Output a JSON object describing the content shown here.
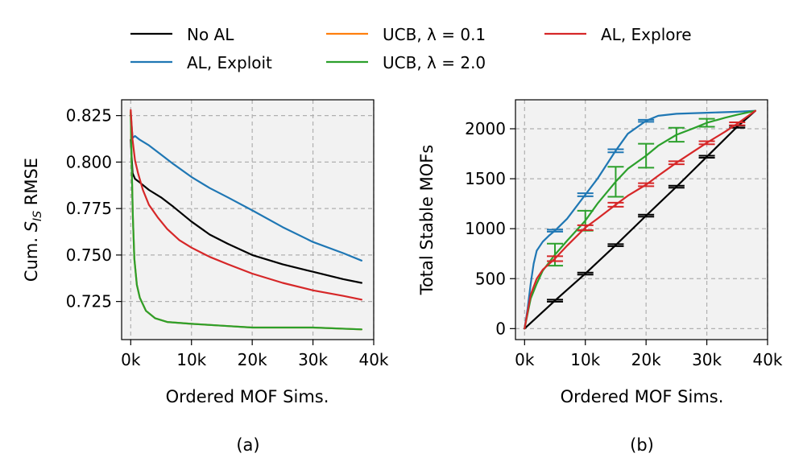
{
  "legend": [
    {
      "label": "No AL",
      "color": "#000000"
    },
    {
      "label": "AL, Exploit",
      "color": "#1f77b4"
    },
    {
      "label": "UCB, λ = 0.1",
      "color": "#ff7f0e"
    },
    {
      "label": "UCB, λ = 2.0",
      "color": "#2ca02c"
    },
    {
      "label": "AL, Explore",
      "color": "#d62728"
    }
  ],
  "chart_data": [
    {
      "type": "line",
      "panel_label": "(a)",
      "xlabel": "Ordered MOF Sims.",
      "ylabel_prefix": "Cum. ",
      "ylabel_symbol": "S",
      "ylabel_sub": "IS",
      "ylabel_suffix": " RMSE",
      "xlim": [
        -1500,
        40000
      ],
      "ylim": [
        0.7045,
        0.8335
      ],
      "xticks": [
        0,
        10000,
        20000,
        30000,
        40000
      ],
      "xtick_labels": [
        "0k",
        "10k",
        "20k",
        "30k",
        "40k"
      ],
      "yticks": [
        0.725,
        0.75,
        0.775,
        0.8,
        0.825
      ],
      "ytick_labels": [
        "0.725",
        "0.750",
        "0.775",
        "0.800",
        "0.825"
      ],
      "grid": true,
      "series": [
        {
          "name": "No AL",
          "color": "#000000",
          "x": [
            0,
            300,
            700,
            1500,
            3000,
            5000,
            7000,
            10000,
            13000,
            16000,
            20000,
            25000,
            30000,
            35000,
            38000
          ],
          "y": [
            0.812,
            0.794,
            0.791,
            0.789,
            0.785,
            0.781,
            0.776,
            0.768,
            0.761,
            0.756,
            0.75,
            0.745,
            0.741,
            0.737,
            0.735
          ]
        },
        {
          "name": "AL, Exploit",
          "color": "#1f77b4",
          "x": [
            0,
            300,
            700,
            1500,
            3000,
            5000,
            7000,
            10000,
            13000,
            16000,
            20000,
            25000,
            30000,
            35000,
            38000
          ],
          "y": [
            0.826,
            0.813,
            0.814,
            0.812,
            0.809,
            0.804,
            0.799,
            0.792,
            0.786,
            0.781,
            0.774,
            0.765,
            0.757,
            0.751,
            0.747
          ]
        },
        {
          "name": "UCB, λ = 0.1",
          "color": "#ff7f0e",
          "x": [
            0,
            150,
            350,
            600,
            1000,
            1500,
            2500,
            4000,
            6000,
            10000,
            15000,
            20000,
            25000,
            30000,
            38000
          ],
          "y": [
            0.827,
            0.8,
            0.77,
            0.748,
            0.734,
            0.727,
            0.72,
            0.716,
            0.714,
            0.713,
            0.712,
            0.711,
            0.711,
            0.711,
            0.71
          ]
        },
        {
          "name": "UCB, λ = 2.0",
          "color": "#2ca02c",
          "x": [
            0,
            150,
            350,
            600,
            1000,
            1500,
            2500,
            4000,
            6000,
            10000,
            15000,
            20000,
            25000,
            30000,
            38000
          ],
          "y": [
            0.827,
            0.8,
            0.77,
            0.748,
            0.734,
            0.727,
            0.72,
            0.716,
            0.714,
            0.713,
            0.712,
            0.711,
            0.711,
            0.711,
            0.71
          ]
        },
        {
          "name": "AL, Explore",
          "color": "#d62728",
          "x": [
            0,
            300,
            700,
            1200,
            2000,
            3000,
            4500,
            6000,
            8000,
            10000,
            13000,
            16000,
            20000,
            25000,
            30000,
            35000,
            38000
          ],
          "y": [
            0.828,
            0.812,
            0.801,
            0.794,
            0.785,
            0.777,
            0.77,
            0.764,
            0.758,
            0.754,
            0.749,
            0.745,
            0.74,
            0.735,
            0.731,
            0.728,
            0.726
          ]
        }
      ]
    },
    {
      "type": "line",
      "panel_label": "(b)",
      "xlabel": "Ordered MOF Sims.",
      "ylabel": "Total Stable MOFs",
      "xlim": [
        -1500,
        40000
      ],
      "ylim": [
        -110,
        2290
      ],
      "xticks": [
        0,
        10000,
        20000,
        30000,
        40000
      ],
      "xtick_labels": [
        "0k",
        "10k",
        "20k",
        "30k",
        "40k"
      ],
      "yticks": [
        0,
        500,
        1000,
        1500,
        2000
      ],
      "ytick_labels": [
        "0",
        "500",
        "1000",
        "1500",
        "2000"
      ],
      "grid": true,
      "series": [
        {
          "name": "No AL",
          "color": "#000000",
          "x": [
            0,
            5000,
            10000,
            15000,
            20000,
            25000,
            30000,
            35000,
            38000
          ],
          "y": [
            0,
            280,
            550,
            835,
            1130,
            1420,
            1720,
            2020,
            2180
          ],
          "errorbars": {
            "x": [
              5000,
              10000,
              15000,
              20000,
              25000,
              30000,
              35000
            ],
            "y": [
              280,
              550,
              835,
              1130,
              1420,
              1720,
              2020
            ],
            "err": [
              10,
              10,
              10,
              10,
              10,
              10,
              10
            ]
          }
        },
        {
          "name": "AL, Exploit",
          "color": "#1f77b4",
          "x": [
            0,
            500,
            1000,
            1500,
            2000,
            3000,
            4000,
            5000,
            7000,
            10000,
            12000,
            15000,
            17000,
            20000,
            22000,
            25000,
            30000,
            35000,
            38000
          ],
          "y": [
            0,
            200,
            450,
            650,
            780,
            870,
            930,
            980,
            1100,
            1340,
            1500,
            1780,
            1950,
            2080,
            2130,
            2150,
            2160,
            2170,
            2180
          ],
          "errorbars": {
            "x": [
              5000,
              10000,
              15000,
              20000
            ],
            "y": [
              980,
              1340,
              1780,
              2080
            ],
            "err": [
              10,
              15,
              15,
              10
            ]
          }
        },
        {
          "name": "UCB, λ = 2.0",
          "color": "#2ca02c",
          "x": [
            0,
            500,
            1000,
            2000,
            3000,
            5000,
            7000,
            10000,
            12000,
            15000,
            17000,
            20000,
            22000,
            25000,
            28000,
            30000,
            33000,
            35000,
            38000
          ],
          "y": [
            0,
            150,
            300,
            450,
            580,
            740,
            880,
            1080,
            1250,
            1470,
            1600,
            1730,
            1830,
            1940,
            2010,
            2060,
            2110,
            2140,
            2180
          ],
          "errorbars": {
            "x": [
              5000,
              10000,
              15000,
              20000,
              25000,
              30000
            ],
            "y": [
              740,
              1080,
              1470,
              1730,
              1940,
              2060
            ],
            "err": [
              110,
              100,
              150,
              120,
              70,
              40
            ]
          }
        },
        {
          "name": "AL, Explore",
          "color": "#d62728",
          "x": [
            0,
            500,
            1000,
            2000,
            3000,
            5000,
            7000,
            10000,
            12000,
            15000,
            17000,
            20000,
            22000,
            25000,
            28000,
            30000,
            33000,
            35000,
            38000
          ],
          "y": [
            0,
            170,
            340,
            500,
            590,
            700,
            830,
            1010,
            1100,
            1240,
            1330,
            1440,
            1530,
            1660,
            1780,
            1860,
            1970,
            2050,
            2180
          ],
          "errorbars": {
            "x": [
              5000,
              10000,
              15000,
              20000,
              25000,
              30000,
              35000
            ],
            "y": [
              700,
              1010,
              1240,
              1440,
              1660,
              1860,
              2050
            ],
            "err": [
              25,
              25,
              20,
              15,
              15,
              15,
              15
            ]
          }
        }
      ]
    }
  ]
}
